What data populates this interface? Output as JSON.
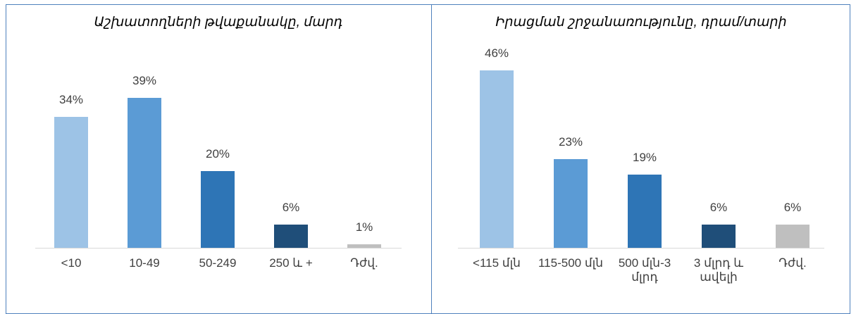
{
  "chart_data": [
    {
      "type": "bar",
      "title": "Աշխատողների թվաքանակը, մարդ",
      "categories": [
        "<10",
        "10-49",
        "50-249",
        "250 և +",
        "Դժվ."
      ],
      "values": [
        34,
        39,
        20,
        6,
        1
      ],
      "value_labels": [
        "34%",
        "39%",
        "20%",
        "6%",
        "1%"
      ],
      "colors": [
        "#9dc3e6",
        "#5b9bd5",
        "#2e75b6",
        "#1f4e79",
        "#bfbfbf"
      ]
    },
    {
      "type": "bar",
      "title": "Իրացման շրջանառությունը, դրամ/տարի",
      "categories": [
        "<115 մլն",
        "115-500 մլն",
        "500 մլն-3 մլրդ",
        "3 մլրդ և ավելի",
        "Դժվ."
      ],
      "values": [
        46,
        23,
        19,
        6,
        6
      ],
      "value_labels": [
        "46%",
        "23%",
        "19%",
        "6%",
        "6%"
      ],
      "colors": [
        "#9dc3e6",
        "#5b9bd5",
        "#2e75b6",
        "#1f4e79",
        "#bfbfbf"
      ]
    }
  ]
}
